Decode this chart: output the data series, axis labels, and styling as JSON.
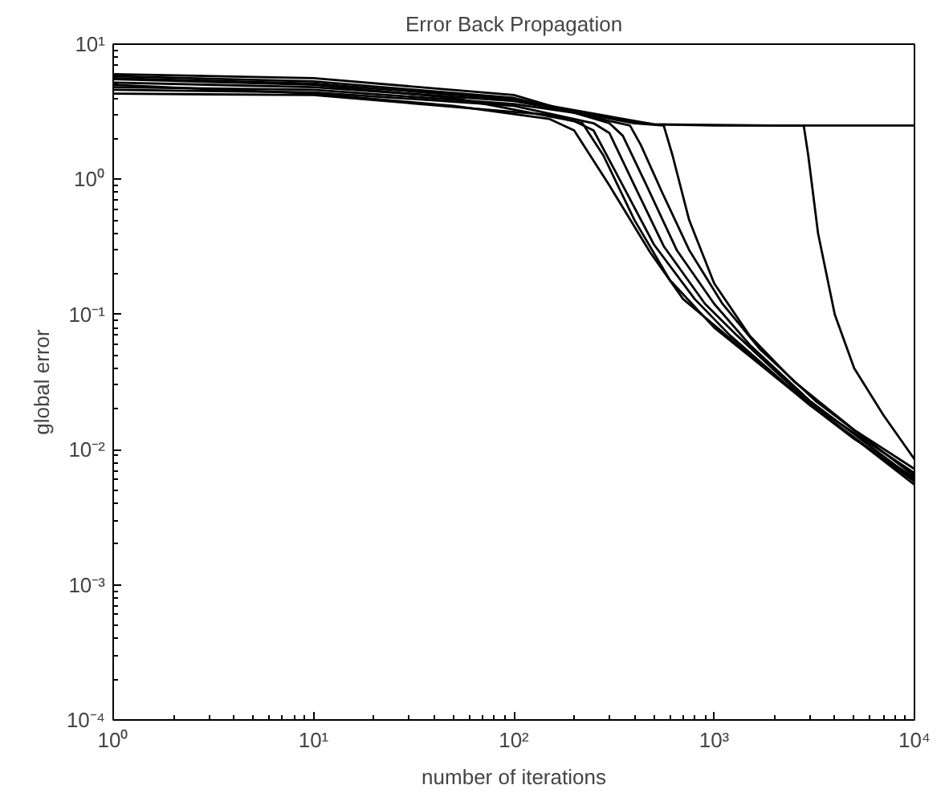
{
  "chart_data": {
    "type": "line",
    "title": "Error Back Propagation",
    "xlabel": "number of iterations",
    "ylabel": "global error",
    "log": "xy",
    "grid": false,
    "marker": "none",
    "line_style": "solid",
    "xlim": [
      1,
      10000
    ],
    "ylim": [
      0.0001,
      10
    ],
    "xticks": [
      {
        "value": 1,
        "label": "10⁰"
      },
      {
        "value": 10,
        "label": "10¹"
      },
      {
        "value": 100,
        "label": "10²"
      },
      {
        "value": 1000,
        "label": "10³"
      },
      {
        "value": 10000,
        "label": "10⁴"
      }
    ],
    "yticks": [
      {
        "value": 0.0001,
        "label": "10⁻⁴"
      },
      {
        "value": 0.001,
        "label": "10⁻³"
      },
      {
        "value": 0.01,
        "label": "10⁻²"
      },
      {
        "value": 0.1,
        "label": "10⁻¹"
      },
      {
        "value": 1,
        "label": "10⁰"
      },
      {
        "value": 10,
        "label": "10¹"
      }
    ],
    "series": [
      {
        "color": "#000000",
        "x": [
          1,
          10,
          50,
          150,
          200,
          300,
          478,
          700,
          1180,
          2000,
          2930,
          5000,
          10000
        ],
        "values": [
          5.0,
          4.3,
          3.5,
          2.8,
          2.3,
          0.9,
          0.29,
          0.13,
          0.068,
          0.035,
          0.022,
          0.012,
          0.0062
        ]
      },
      {
        "color": "#000000",
        "x": [
          1,
          10,
          50,
          200,
          250,
          350,
          500,
          800,
          1200,
          2930,
          10000
        ],
        "values": [
          5.5,
          5.0,
          4.0,
          2.7,
          2.3,
          0.9,
          0.33,
          0.13,
          0.07,
          0.022,
          0.0058
        ]
      },
      {
        "color": "#000000",
        "x": [
          1,
          10,
          100,
          250,
          300,
          400,
          560,
          900,
          1300,
          3000,
          10000
        ],
        "values": [
          4.6,
          4.4,
          3.5,
          2.6,
          2.2,
          0.9,
          0.32,
          0.12,
          0.07,
          0.022,
          0.0067
        ]
      },
      {
        "color": "#000000",
        "x": [
          1,
          10,
          100,
          300,
          350,
          460,
          650,
          1000,
          1500,
          3000,
          10000
        ],
        "values": [
          6.0,
          5.6,
          4.2,
          2.6,
          2.1,
          0.9,
          0.3,
          0.12,
          0.06,
          0.023,
          0.006
        ]
      },
      {
        "color": "#000000",
        "x": [
          1,
          10,
          100,
          300,
          380,
          430,
          550,
          750,
          1100,
          1700,
          3200,
          10000
        ],
        "values": [
          5.8,
          5.3,
          4.0,
          2.7,
          2.5,
          1.8,
          0.8,
          0.3,
          0.12,
          0.055,
          0.023,
          0.0064
        ]
      },
      {
        "color": "#000000",
        "x": [
          1,
          10,
          100,
          400,
          560,
          620,
          750,
          1000,
          1500,
          2500,
          5000,
          10000
        ],
        "values": [
          5.2,
          4.8,
          3.8,
          2.6,
          2.5,
          1.5,
          0.5,
          0.17,
          0.07,
          0.032,
          0.014,
          0.0072
        ]
      },
      {
        "color": "#000000",
        "x": [
          1,
          10,
          100,
          500,
          1000,
          2800,
          2950,
          3300,
          4000,
          5000,
          7000,
          10000
        ],
        "values": [
          4.8,
          4.6,
          3.6,
          2.55,
          2.5,
          2.5,
          1.5,
          0.4,
          0.1,
          0.04,
          0.018,
          0.0085
        ]
      },
      {
        "color": "#000000",
        "x": [
          1,
          10,
          100,
          500,
          2000,
          10000
        ],
        "values": [
          5.6,
          5.1,
          3.9,
          2.55,
          2.5,
          2.5
        ]
      },
      {
        "color": "#000000",
        "x": [
          1,
          10,
          150,
          220,
          280,
          400,
          600,
          1000,
          2000,
          10000
        ],
        "values": [
          4.3,
          4.2,
          3.0,
          2.6,
          1.5,
          0.5,
          0.18,
          0.08,
          0.035,
          0.0055
        ]
      }
    ]
  }
}
